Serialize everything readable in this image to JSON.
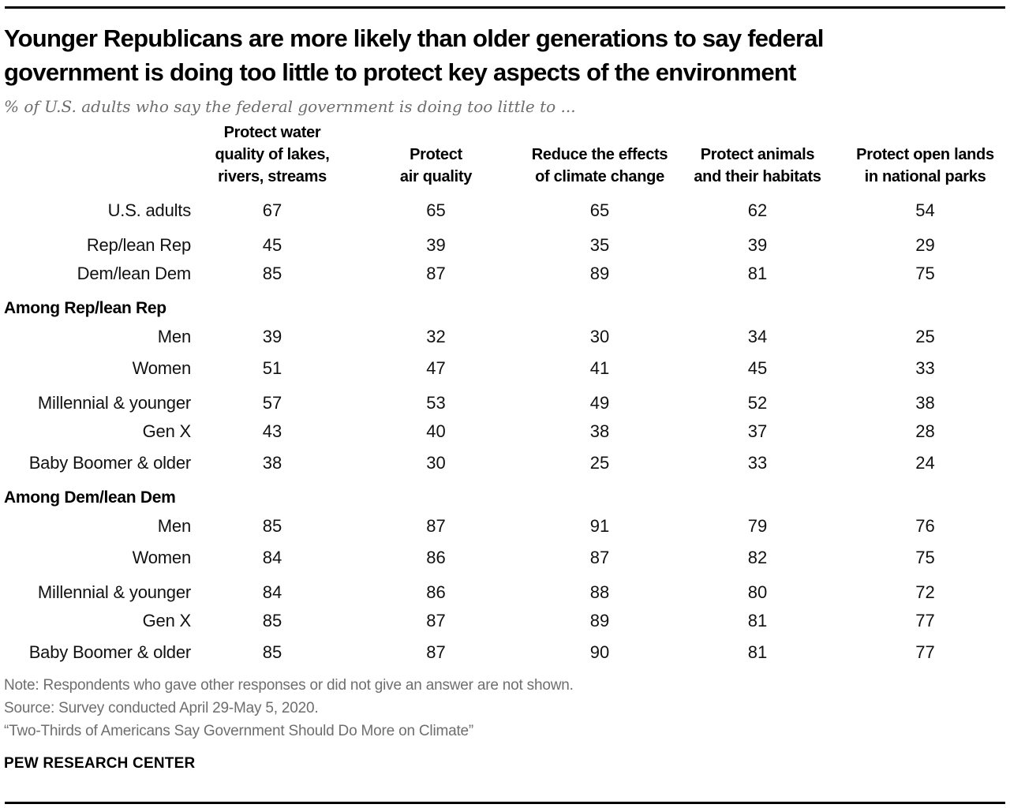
{
  "colors": {
    "rule": "#000000",
    "title": "#000000",
    "body": "#111111",
    "muted": "#6e6e6e"
  },
  "page": {
    "title_lines": [
      "Younger Republicans are more likely than older generations to say federal",
      "government is doing too little to protect key aspects of the environment"
    ],
    "subtitle": "% of U.S. adults who say the federal government is doing too little to ..."
  },
  "chart_data": {
    "type": "table",
    "title": "Younger Republicans are more likely than older generations to say federal government is doing too little to protect key aspects of the environment",
    "subtitle": "% of U.S. adults who say the federal government is doing too little to ...",
    "columns": [
      "Protect water quality of lakes, rivers, streams",
      "Protect air quality",
      "Reduce the effects of climate change",
      "Protect animals and their habitats",
      "Protect open lands in national parks"
    ],
    "column_lines": [
      [
        "Protect water",
        "quality of lakes,",
        "rivers, streams"
      ],
      [
        "Protect",
        "air quality"
      ],
      [
        "Reduce the effects",
        "of climate change"
      ],
      [
        "Protect animals",
        "and their habitats"
      ],
      [
        "Protect open lands",
        "in national parks"
      ]
    ],
    "rows": [
      {
        "label": "U.S. adults",
        "values": [
          67,
          65,
          65,
          62,
          54
        ]
      },
      {
        "label": "Rep/lean Rep",
        "values": [
          45,
          39,
          35,
          39,
          29
        ],
        "gap": true
      },
      {
        "label": "Dem/lean Dem",
        "values": [
          85,
          87,
          89,
          81,
          75
        ]
      },
      {
        "label": "Among Rep/lean Rep",
        "section": true,
        "gap": true
      },
      {
        "label": "Men",
        "values": [
          39,
          32,
          30,
          34,
          25
        ]
      },
      {
        "label": "Women",
        "values": [
          51,
          47,
          41,
          45,
          33
        ]
      },
      {
        "label": "Millennial & younger",
        "values": [
          57,
          53,
          49,
          52,
          38
        ],
        "gap": true
      },
      {
        "label": "Gen X",
        "values": [
          43,
          40,
          38,
          37,
          28
        ]
      },
      {
        "label": "Baby Boomer & older",
        "values": [
          38,
          30,
          25,
          33,
          24
        ]
      },
      {
        "label": "Among Dem/lean Dem",
        "section": true,
        "gap": true
      },
      {
        "label": "Men",
        "values": [
          85,
          87,
          91,
          79,
          76
        ]
      },
      {
        "label": "Women",
        "values": [
          84,
          86,
          87,
          82,
          75
        ]
      },
      {
        "label": "Millennial & younger",
        "values": [
          84,
          86,
          88,
          80,
          72
        ],
        "gap": true
      },
      {
        "label": "Gen X",
        "values": [
          85,
          87,
          89,
          81,
          77
        ]
      },
      {
        "label": "Baby Boomer & older",
        "values": [
          85,
          87,
          90,
          81,
          77
        ]
      }
    ]
  },
  "footer": {
    "note": "Note: Respondents who gave other responses or did not give an answer are not shown.",
    "source": "Source: Survey conducted April 29-May 5, 2020.",
    "quote": "“Two-Thirds of Americans Say Government Should Do More on Climate”",
    "brand": "PEW RESEARCH CENTER"
  }
}
